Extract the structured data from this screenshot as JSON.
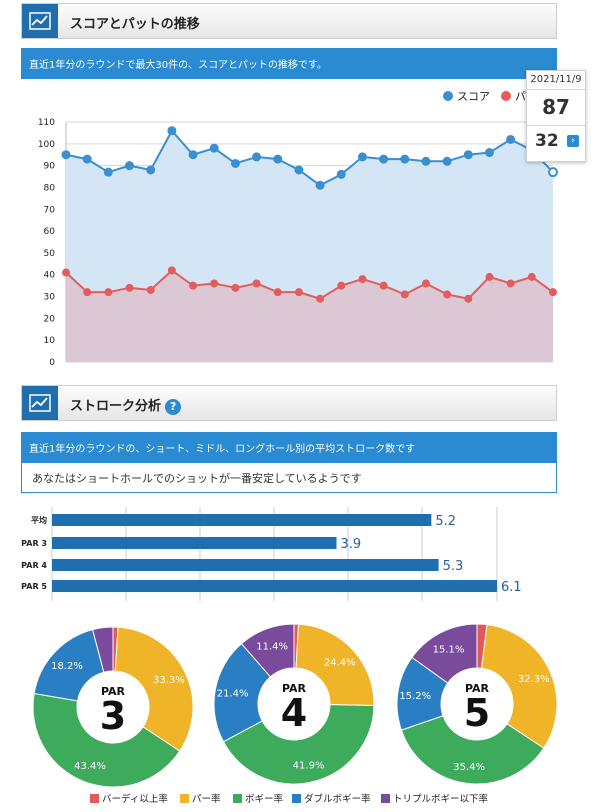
{
  "section1": {
    "title": "スコアとパットの推移",
    "info": "直近1年分のラウンドで最大30件の、スコアとパットの推移です。"
  },
  "section2": {
    "title": "ストローク分析",
    "help": "?",
    "info": "直近1年分のラウンドの、ショート、ミドル、ロングホール別の平均ストローク数です",
    "message": "あなたはショートホールでのショットが一番安定しているようです"
  },
  "tooltip": {
    "date": "2021/11/9",
    "score": "87",
    "putts": "32",
    "arrow": "›"
  },
  "colors": {
    "score": "#3a8fd0",
    "score_fill": "#d4e6f5",
    "putt": "#e45c5c",
    "putt_fill": "#dcc7d4",
    "bar": "#1f6fae",
    "birdie": "#e05a5a",
    "par": "#f0b429",
    "bogey": "#3daa5c",
    "double": "#2a7fc4",
    "triple": "#7a4a9c"
  },
  "chart_data": [
    {
      "type": "area",
      "legend": [
        "スコア",
        "パ"
      ],
      "legend_position": "top-right",
      "ylim": [
        0,
        110
      ],
      "yticks": [
        0,
        10,
        20,
        30,
        40,
        50,
        60,
        70,
        80,
        90,
        100,
        110
      ],
      "grid": true,
      "series": [
        {
          "name": "スコア",
          "values": [
            95,
            93,
            87,
            90,
            88,
            106,
            95,
            98,
            91,
            94,
            93,
            88,
            81,
            86,
            94,
            93,
            93,
            92,
            92,
            95,
            96,
            102,
            97,
            87
          ]
        },
        {
          "name": "パ",
          "values": [
            41,
            32,
            32,
            34,
            33,
            42,
            35,
            36,
            34,
            36,
            32,
            32,
            29,
            35,
            38,
            35,
            31,
            36,
            31,
            29,
            39,
            36,
            39,
            32
          ]
        }
      ]
    },
    {
      "type": "bar",
      "orientation": "horizontal",
      "categories": [
        "平均",
        "PAR 3",
        "PAR 4",
        "PAR 5"
      ],
      "values": [
        5.2,
        3.9,
        5.3,
        6.1
      ],
      "labels": [
        "5.2",
        "3.9",
        "5.3",
        "6.1"
      ],
      "xlim": [
        0,
        6.1
      ],
      "grid": true
    },
    {
      "type": "pie",
      "center_top": "PAR",
      "center_num": "3",
      "slices": [
        {
          "category": "バーディ以上率",
          "value": 1.0,
          "label": ""
        },
        {
          "category": "パー率",
          "value": 33.3,
          "label": "33.3%"
        },
        {
          "category": "ボギー率",
          "value": 43.4,
          "label": "43.4%"
        },
        {
          "category": "ダブルボギー率",
          "value": 18.2,
          "label": "18.2%"
        },
        {
          "category": "トリプルボギー以下率",
          "value": 4.1,
          "label": ""
        }
      ]
    },
    {
      "type": "pie",
      "center_top": "PAR",
      "center_num": "4",
      "slices": [
        {
          "category": "バーディ以上率",
          "value": 0.9,
          "label": ""
        },
        {
          "category": "パー率",
          "value": 24.4,
          "label": "24.4%"
        },
        {
          "category": "ボギー率",
          "value": 41.9,
          "label": "41.9%"
        },
        {
          "category": "ダブルボギー率",
          "value": 21.4,
          "label": "21.4%"
        },
        {
          "category": "トリプルボギー以下率",
          "value": 11.4,
          "label": "11.4%"
        }
      ]
    },
    {
      "type": "pie",
      "center_top": "PAR",
      "center_num": "5",
      "slices": [
        {
          "category": "バーディ以上率",
          "value": 2.0,
          "label": ""
        },
        {
          "category": "パー率",
          "value": 32.3,
          "label": "32.3%"
        },
        {
          "category": "ボギー率",
          "value": 35.4,
          "label": "35.4%"
        },
        {
          "category": "ダブルボギー率",
          "value": 15.2,
          "label": "15.2%"
        },
        {
          "category": "トリプルボギー以下率",
          "value": 15.1,
          "label": "15.1%"
        }
      ]
    }
  ],
  "pie_legend": [
    "バーディ以上率",
    "パー率",
    "ボギー率",
    "ダブルボギー率",
    "トリプルボギー以下率"
  ]
}
